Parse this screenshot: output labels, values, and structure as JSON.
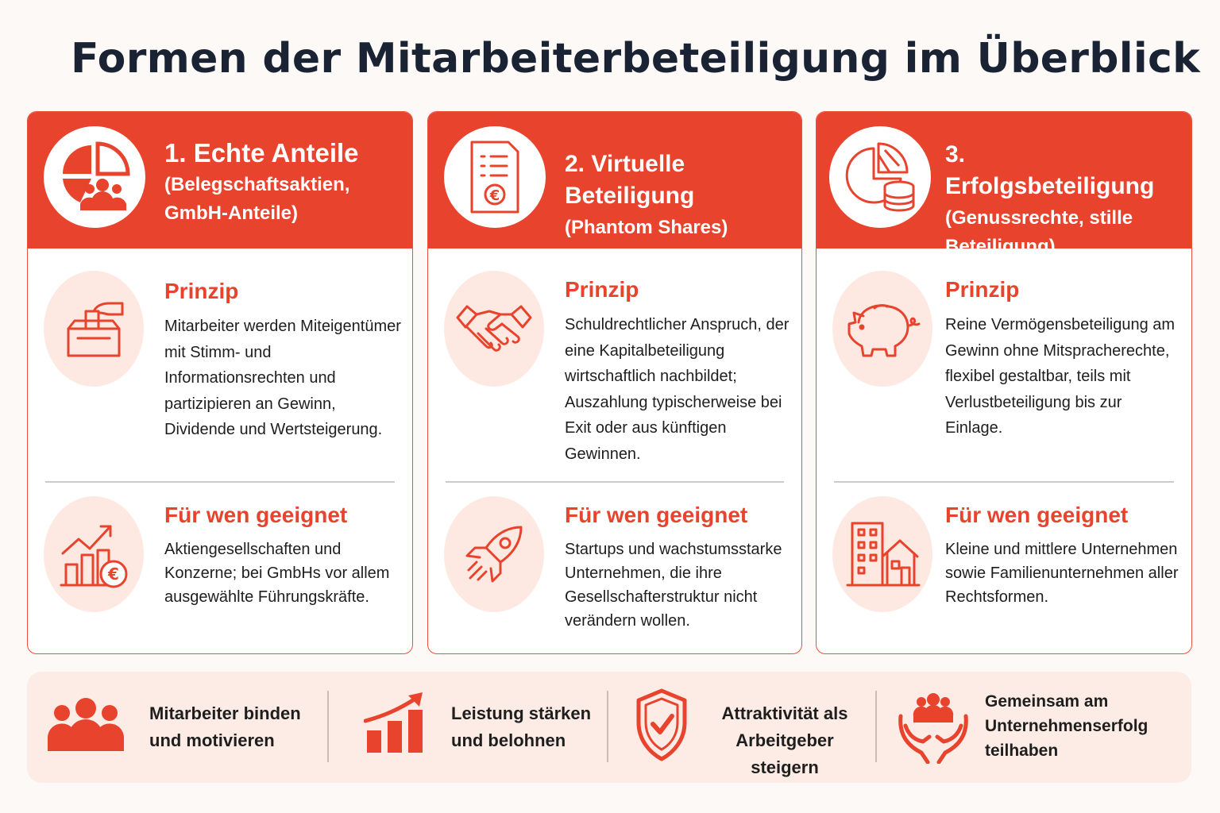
{
  "title": "Formen der Mitarbeiterbeteiligung im Überblick",
  "cards": [
    {
      "title": "1. Echte Anteile",
      "subtitle": "(Belegschaftsaktien, GmbH-Anteile)",
      "header_icon": "pie-chart-people-icon",
      "principle": {
        "heading": "Prinzip",
        "icon": "ballot-box-icon",
        "text": "Mitarbeiter werden Miteigentümer mit Stimm- und Informationsrechten und partizipieren an Gewinn, Dividende und Wertsteigerung."
      },
      "suitable": {
        "heading": "Für wen geeignet",
        "icon": "growth-chart-euro-icon",
        "text": "Aktiengesellschaften und Konzerne; bei GmbHs vor allem ausgewählte Führungskräfte."
      }
    },
    {
      "title": "2. Virtuelle Beteiligung",
      "subtitle": "(Phantom Shares)",
      "header_icon": "euro-document-icon",
      "principle": {
        "heading": "Prinzip",
        "icon": "handshake-icon",
        "text": "Schuldrechtlicher Anspruch, der eine Kapitalbeteiligung wirtschaftlich nachbildet; Auszahlung typischerweise bei Exit oder aus künftigen Gewinnen."
      },
      "suitable": {
        "heading": "Für wen geeignet",
        "icon": "rocket-icon",
        "text": "Startups und wachstumsstarke Unternehmen, die ihre Gesellschafterstruktur nicht verändern wollen."
      }
    },
    {
      "title": "3. Erfolgsbeteiligung",
      "subtitle": "(Genussrechte, stille Beteiligung)",
      "header_icon": "pie-chart-coins-icon",
      "principle": {
        "heading": "Prinzip",
        "icon": "piggy-bank-icon",
        "text": "Reine Vermögensbeteiligung am Gewinn ohne Mitspracherechte, flexibel gestaltbar, teils mit Verlustbeteiligung bis zur Einlage."
      },
      "suitable": {
        "heading": "Für wen geeignet",
        "icon": "buildings-icon",
        "text": "Kleine und mittlere Unternehmen sowie Familienunternehmen aller Rechtsformen."
      }
    }
  ],
  "benefits": [
    {
      "icon": "team-icon",
      "text": "Mitarbeiter binden und motivieren"
    },
    {
      "icon": "growth-bars-icon",
      "text": "Leistung stärken und belohnen"
    },
    {
      "icon": "shield-check-icon",
      "text": "Attraktivität als Arbeitgeber steigern"
    },
    {
      "icon": "hands-people-icon",
      "text": "Gemeinsam am Unternehmenserfolg teilhaben"
    }
  ],
  "colors": {
    "accent": "#e8432d",
    "title": "#1a2333",
    "soft": "#fde9e2",
    "panel": "#fdece6"
  }
}
